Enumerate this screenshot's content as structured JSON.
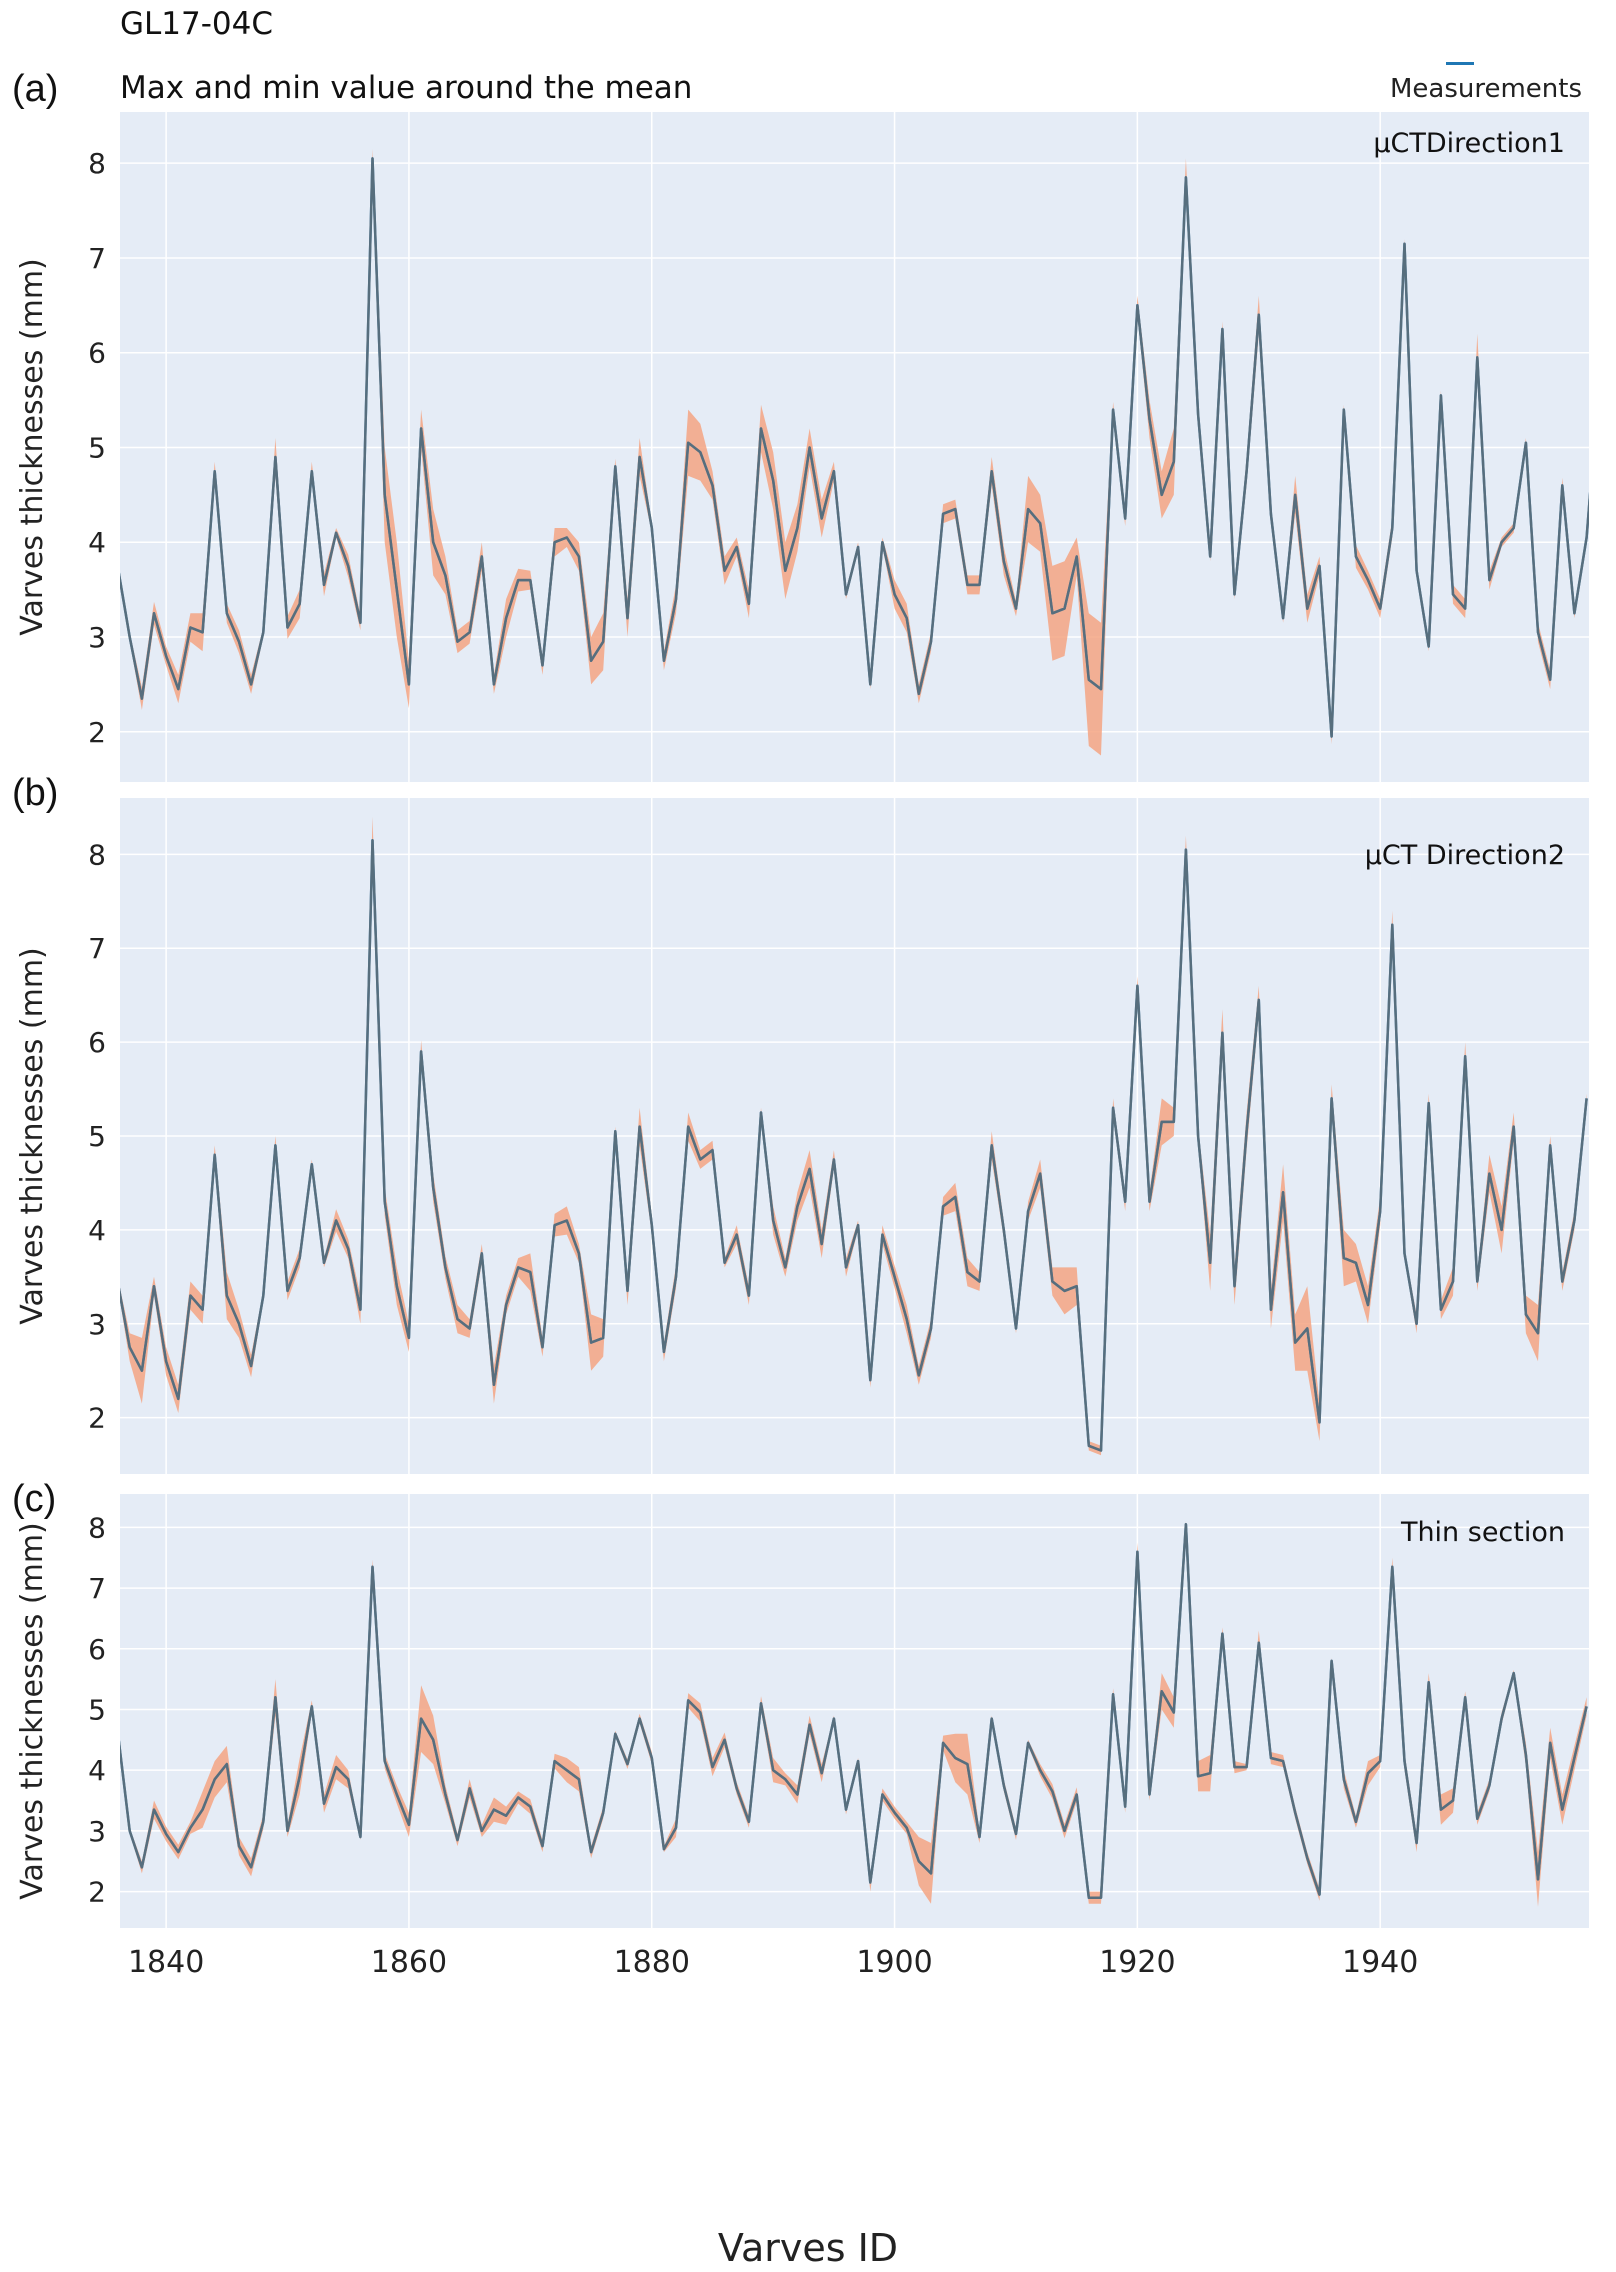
{
  "header": {
    "core_id": "GL17-04C",
    "subtitle": "Max and min value around the mean",
    "legend_label": "Measurements"
  },
  "colors": {
    "background": "#e5ecf6",
    "grid": "#ffffff",
    "measurement_line": "#1f77b4",
    "mean_line": "#6b6b6b",
    "band": "#f4a582"
  },
  "chart_data": [
    {
      "type": "line",
      "panel_label": "(a)",
      "annotation": "µCTDirection1",
      "xlabel": "",
      "ylabel": "Varves thicknesses (mm)",
      "xlim": [
        1836.2,
        1957.2
      ],
      "ylim": [
        1.47,
        8.54
      ],
      "yticks": [
        2,
        3,
        4,
        5,
        6,
        7,
        8
      ],
      "xticks": [
        1840,
        1860,
        1880,
        1900,
        1920,
        1940
      ],
      "grid": true,
      "x_start": 1836,
      "series": [
        {
          "name": "Measurements",
          "values": [
            3.75,
            3.0,
            2.35,
            3.25,
            2.8,
            2.45,
            3.1,
            3.05,
            4.75,
            3.25,
            2.95,
            2.5,
            3.05,
            4.9,
            3.1,
            3.35,
            4.75,
            3.55,
            4.1,
            3.75,
            3.15,
            8.05,
            4.5,
            3.5,
            2.5,
            5.2,
            4.0,
            3.65,
            2.95,
            3.05,
            3.85,
            2.5,
            3.2,
            3.6,
            3.6,
            2.7,
            4.0,
            4.05,
            3.85,
            2.75,
            2.95,
            4.8,
            3.2,
            4.9,
            4.15,
            2.75,
            3.4,
            5.05,
            4.95,
            4.6,
            3.7,
            3.95,
            3.35,
            5.2,
            4.65,
            3.7,
            4.15,
            5.0,
            4.25,
            4.75,
            3.45,
            3.95,
            2.5,
            4.0,
            3.45,
            3.2,
            2.4,
            2.95,
            4.3,
            4.35,
            3.55,
            3.55,
            4.75,
            3.8,
            3.3,
            4.35,
            4.2,
            3.25,
            3.3,
            3.85,
            2.55,
            2.45,
            5.4,
            4.25,
            6.5,
            5.3,
            4.5,
            4.85,
            7.85,
            5.35,
            3.85,
            6.25,
            3.45,
            4.75,
            6.4,
            4.3,
            3.2,
            4.5,
            3.3,
            3.75,
            1.95,
            5.4,
            3.85,
            3.6,
            3.3,
            4.15,
            7.15,
            3.7,
            2.9,
            5.55,
            3.45,
            3.3,
            5.95,
            3.6,
            4.0,
            4.15,
            5.05,
            3.05,
            2.55,
            4.6,
            3.25,
            4.05,
            5.65
          ]
        },
        {
          "name": "Mean",
          "values": [
            3.75,
            3.0,
            2.35,
            3.25,
            2.8,
            2.45,
            3.1,
            3.05,
            4.75,
            3.25,
            2.95,
            2.5,
            3.05,
            4.9,
            3.1,
            3.35,
            4.75,
            3.55,
            4.1,
            3.75,
            3.15,
            8.05,
            4.5,
            3.5,
            2.5,
            5.2,
            4.0,
            3.65,
            2.95,
            3.05,
            3.85,
            2.5,
            3.2,
            3.6,
            3.6,
            2.7,
            4.0,
            4.05,
            3.85,
            2.75,
            2.95,
            4.8,
            3.2,
            4.9,
            4.15,
            2.75,
            3.4,
            5.05,
            4.95,
            4.6,
            3.7,
            3.95,
            3.35,
            5.2,
            4.65,
            3.7,
            4.15,
            5.0,
            4.25,
            4.75,
            3.45,
            3.95,
            2.5,
            4.0,
            3.45,
            3.2,
            2.4,
            2.95,
            4.3,
            4.35,
            3.55,
            3.55,
            4.75,
            3.8,
            3.3,
            4.35,
            4.2,
            3.25,
            3.3,
            3.85,
            2.55,
            2.45,
            5.4,
            4.25,
            6.5,
            5.3,
            4.5,
            4.85,
            7.85,
            5.35,
            3.85,
            6.25,
            3.45,
            4.75,
            6.4,
            4.3,
            3.2,
            4.5,
            3.3,
            3.75,
            1.95,
            5.4,
            3.85,
            3.6,
            3.3,
            4.15,
            7.15,
            3.7,
            2.9,
            5.55,
            3.45,
            3.3,
            5.95,
            3.6,
            4.0,
            4.15,
            5.05,
            3.05,
            2.55,
            4.6,
            3.25,
            4.05,
            5.65
          ]
        }
      ],
      "band_halfwidth": [
        0.05,
        0.05,
        0.12,
        0.12,
        0.1,
        0.15,
        0.15,
        0.2,
        0.1,
        0.1,
        0.12,
        0.1,
        0.05,
        0.2,
        0.12,
        0.15,
        0.1,
        0.12,
        0.05,
        0.12,
        0.08,
        0.1,
        0.5,
        0.5,
        0.25,
        0.2,
        0.35,
        0.2,
        0.12,
        0.12,
        0.15,
        0.1,
        0.2,
        0.12,
        0.1,
        0.1,
        0.15,
        0.1,
        0.15,
        0.25,
        0.3,
        0.08,
        0.2,
        0.2,
        0.05,
        0.1,
        0.15,
        0.35,
        0.3,
        0.15,
        0.15,
        0.1,
        0.15,
        0.25,
        0.3,
        0.3,
        0.25,
        0.2,
        0.2,
        0.1,
        0.05,
        0.05,
        0.05,
        0.05,
        0.15,
        0.15,
        0.1,
        0.1,
        0.1,
        0.1,
        0.1,
        0.1,
        0.15,
        0.15,
        0.08,
        0.35,
        0.3,
        0.5,
        0.5,
        0.2,
        0.7,
        0.7,
        0.08,
        0.08,
        0.1,
        0.2,
        0.25,
        0.35,
        0.2,
        0.05,
        0.05,
        0.08,
        0.05,
        0.15,
        0.2,
        0.05,
        0.05,
        0.2,
        0.15,
        0.1,
        0.08,
        0.05,
        0.12,
        0.1,
        0.1,
        0.1,
        0.05,
        0.05,
        0.05,
        0.05,
        0.1,
        0.1,
        0.25,
        0.1,
        0.05,
        0.05,
        0.05,
        0.1,
        0.1,
        0.08,
        0.05,
        0.05,
        0.05
      ]
    },
    {
      "type": "line",
      "panel_label": "(b)",
      "annotation": "µCT Direction2",
      "xlabel": "",
      "ylabel": "Varves thicknesses (mm)",
      "xlim": [
        1836.2,
        1957.2
      ],
      "ylim": [
        1.4,
        8.6
      ],
      "yticks": [
        2,
        3,
        4,
        5,
        6,
        7,
        8
      ],
      "xticks": [
        1840,
        1860,
        1880,
        1900,
        1920,
        1940
      ],
      "grid": true,
      "x_start": 1836,
      "series": [
        {
          "name": "Mean",
          "values": [
            3.45,
            2.75,
            2.5,
            3.4,
            2.6,
            2.2,
            3.3,
            3.15,
            4.8,
            3.3,
            3.0,
            2.55,
            3.3,
            4.9,
            3.35,
            3.7,
            4.7,
            3.65,
            4.1,
            3.8,
            3.15,
            8.15,
            4.3,
            3.4,
            2.85,
            5.9,
            4.45,
            3.6,
            3.05,
            2.95,
            3.75,
            2.35,
            3.2,
            3.6,
            3.55,
            2.75,
            4.05,
            4.1,
            3.75,
            2.8,
            2.85,
            5.05,
            3.35,
            5.1,
            4.05,
            2.7,
            3.5,
            5.1,
            4.75,
            4.85,
            3.65,
            3.95,
            3.3,
            5.25,
            4.1,
            3.6,
            4.25,
            4.65,
            3.85,
            4.75,
            3.6,
            4.05,
            2.4,
            3.95,
            3.5,
            3.05,
            2.45,
            2.95,
            4.25,
            4.35,
            3.55,
            3.45,
            4.9,
            4.0,
            2.95,
            4.2,
            4.6,
            3.45,
            3.35,
            3.4,
            1.7,
            1.65,
            5.3,
            4.3,
            6.6,
            4.3,
            5.15,
            5.15,
            8.05,
            5.0,
            3.65,
            6.1,
            3.4,
            5.05,
            6.45,
            3.15,
            4.4,
            2.8,
            2.95,
            1.95,
            5.4,
            3.7,
            3.65,
            3.2,
            4.2,
            7.25,
            3.75,
            3.0,
            5.35,
            3.15,
            3.45,
            5.85,
            3.45,
            4.6,
            4.0,
            5.1,
            3.1,
            2.9,
            4.9,
            3.45,
            4.1,
            5.4
          ]
        }
      ],
      "band_halfwidth": [
        0.05,
        0.15,
        0.35,
        0.1,
        0.15,
        0.15,
        0.15,
        0.15,
        0.1,
        0.25,
        0.15,
        0.12,
        0.05,
        0.1,
        0.1,
        0.1,
        0.05,
        0.05,
        0.12,
        0.1,
        0.15,
        0.25,
        0.15,
        0.2,
        0.15,
        0.12,
        0.15,
        0.12,
        0.15,
        0.1,
        0.1,
        0.2,
        0.1,
        0.1,
        0.2,
        0.1,
        0.12,
        0.15,
        0.1,
        0.3,
        0.2,
        0.05,
        0.15,
        0.2,
        0.1,
        0.1,
        0.12,
        0.15,
        0.1,
        0.1,
        0.05,
        0.1,
        0.1,
        0.05,
        0.15,
        0.1,
        0.15,
        0.2,
        0.15,
        0.1,
        0.1,
        0.05,
        0.08,
        0.1,
        0.12,
        0.15,
        0.1,
        0.1,
        0.1,
        0.15,
        0.15,
        0.1,
        0.15,
        0.1,
        0.05,
        0.1,
        0.15,
        0.15,
        0.25,
        0.2,
        0.05,
        0.05,
        0.1,
        0.1,
        0.1,
        0.1,
        0.25,
        0.15,
        0.15,
        0.1,
        0.3,
        0.25,
        0.2,
        0.2,
        0.15,
        0.2,
        0.3,
        0.3,
        0.45,
        0.2,
        0.15,
        0.3,
        0.2,
        0.2,
        0.15,
        0.15,
        0.05,
        0.1,
        0.1,
        0.1,
        0.15,
        0.15,
        0.1,
        0.2,
        0.25,
        0.15,
        0.2,
        0.3,
        0.1,
        0.1,
        0.1,
        0.05
      ]
    },
    {
      "type": "line",
      "panel_label": "(c)",
      "annotation": "Thin section",
      "xlabel": "Varves ID",
      "ylabel": "Varves thicknesses (mm)",
      "xlim": [
        1836.2,
        1957.2
      ],
      "ylim": [
        1.4,
        8.55
      ],
      "yticks": [
        2,
        3,
        4,
        5,
        6,
        7,
        8
      ],
      "xticks": [
        1840,
        1860,
        1880,
        1900,
        1920,
        1940
      ],
      "xtick_labels": [
        "1840",
        "1860",
        "1880",
        "1900",
        "1920",
        "1940"
      ],
      "grid": true,
      "x_start": 1836,
      "series": [
        {
          "name": "Mean",
          "values": [
            4.65,
            3.0,
            2.4,
            3.35,
            2.95,
            2.65,
            3.05,
            3.35,
            3.85,
            4.1,
            2.75,
            2.4,
            3.15,
            5.2,
            3.0,
            3.9,
            5.05,
            3.45,
            4.05,
            3.85,
            2.9,
            7.35,
            4.15,
            3.6,
            3.1,
            4.85,
            4.5,
            3.6,
            2.85,
            3.7,
            3.0,
            3.35,
            3.25,
            3.55,
            3.4,
            2.75,
            4.15,
            4.0,
            3.85,
            2.65,
            3.3,
            4.6,
            4.1,
            4.85,
            4.2,
            2.7,
            3.05,
            5.15,
            4.95,
            4.05,
            4.5,
            3.7,
            3.15,
            5.1,
            4.0,
            3.85,
            3.6,
            4.75,
            3.95,
            4.85,
            3.35,
            4.15,
            2.15,
            3.6,
            3.3,
            3.05,
            2.5,
            2.3,
            4.45,
            4.2,
            4.1,
            2.9,
            4.85,
            3.75,
            2.95,
            4.45,
            4.0,
            3.65,
            3.0,
            3.6,
            1.9,
            1.9,
            5.25,
            3.4,
            7.6,
            3.6,
            5.3,
            4.95,
            8.05,
            3.9,
            3.95,
            6.25,
            4.05,
            4.05,
            6.1,
            4.2,
            4.15,
            3.3,
            2.55,
            1.95,
            5.8,
            3.85,
            3.15,
            3.95,
            4.15,
            7.35,
            4.15,
            2.8,
            5.45,
            3.35,
            3.5,
            5.2,
            3.2,
            3.75,
            4.85,
            5.6,
            4.25,
            2.2,
            4.45,
            3.35,
            4.2,
            5.05
          ]
        }
      ],
      "band_halfwidth": [
        0.05,
        0.05,
        0.1,
        0.15,
        0.12,
        0.12,
        0.1,
        0.3,
        0.3,
        0.3,
        0.15,
        0.15,
        0.12,
        0.3,
        0.1,
        0.3,
        0.1,
        0.15,
        0.2,
        0.15,
        0.05,
        0.12,
        0.12,
        0.15,
        0.2,
        0.55,
        0.4,
        0.15,
        0.1,
        0.15,
        0.1,
        0.2,
        0.15,
        0.1,
        0.12,
        0.1,
        0.12,
        0.2,
        0.2,
        0.1,
        0.1,
        0.05,
        0.08,
        0.08,
        0.1,
        0.05,
        0.15,
        0.12,
        0.15,
        0.15,
        0.12,
        0.1,
        0.1,
        0.12,
        0.2,
        0.1,
        0.15,
        0.15,
        0.15,
        0.05,
        0.08,
        0.05,
        0.15,
        0.1,
        0.1,
        0.1,
        0.4,
        0.5,
        0.12,
        0.4,
        0.5,
        0.1,
        0.05,
        0.1,
        0.1,
        0.05,
        0.1,
        0.12,
        0.12,
        0.12,
        0.1,
        0.1,
        0.1,
        0.1,
        0.15,
        0.1,
        0.3,
        0.25,
        0.05,
        0.25,
        0.3,
        0.1,
        0.1,
        0.05,
        0.2,
        0.1,
        0.1,
        0.1,
        0.1,
        0.1,
        0.05,
        0.15,
        0.1,
        0.2,
        0.1,
        0.15,
        0.15,
        0.15,
        0.15,
        0.25,
        0.2,
        0.1,
        0.1,
        0.1,
        0.1,
        0.05,
        0.2,
        0.45,
        0.25,
        0.25,
        0.2,
        0.15
      ]
    }
  ]
}
